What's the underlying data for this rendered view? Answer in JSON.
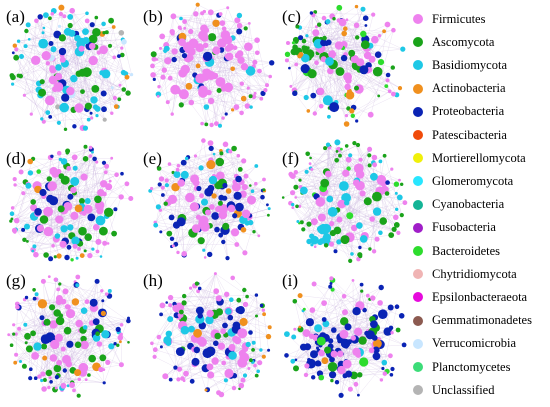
{
  "panels": [
    {
      "label": "(a)",
      "composition": {
        "firmicutes": 0.25,
        "ascomycota": 0.2,
        "basidiomycota": 0.3,
        "proteobacteria": 0.1,
        "actinobacteria": 0.08,
        "unclassified": 0.02,
        "verrucomicrobia": 0.05
      },
      "cluster": "none"
    },
    {
      "label": "(b)",
      "composition": {
        "firmicutes": 0.72,
        "proteobacteria": 0.12,
        "ascomycota": 0.06,
        "actinobacteria": 0.04,
        "basidiomycota": 0.06
      },
      "cluster": "none"
    },
    {
      "label": "(c)",
      "composition": {
        "firmicutes": 0.45,
        "ascomycota": 0.2,
        "proteobacteria": 0.12,
        "basidiomycota": 0.1,
        "actinobacteria": 0.08,
        "bacteroidetes": 0.05
      },
      "cluster": "green-top-left"
    },
    {
      "label": "(d)",
      "composition": {
        "firmicutes": 0.45,
        "proteobacteria": 0.2,
        "ascomycota": 0.17,
        "basidiomycota": 0.12,
        "actinobacteria": 0.04,
        "bacteroidetes": 0.02
      },
      "cluster": "none"
    },
    {
      "label": "(e)",
      "composition": {
        "firmicutes": 0.45,
        "proteobacteria": 0.25,
        "ascomycota": 0.12,
        "basidiomycota": 0.14,
        "actinobacteria": 0.04
      },
      "cluster": "none"
    },
    {
      "label": "(f)",
      "composition": {
        "firmicutes": 0.4,
        "ascomycota": 0.3,
        "basidiomycota": 0.2,
        "proteobacteria": 0.05,
        "bacteroidetes": 0.05
      },
      "cluster": "cyan-bottom-left"
    },
    {
      "label": "(g)",
      "composition": {
        "firmicutes": 0.4,
        "ascomycota": 0.25,
        "proteobacteria": 0.2,
        "basidiomycota": 0.1,
        "actinobacteria": 0.05
      },
      "cluster": "none"
    },
    {
      "label": "(h)",
      "composition": {
        "firmicutes": 0.45,
        "proteobacteria": 0.25,
        "ascomycota": 0.15,
        "basidiomycota": 0.12,
        "actinobacteria": 0.03
      },
      "cluster": "none"
    },
    {
      "label": "(i)",
      "composition": {
        "firmicutes": 0.35,
        "proteobacteria": 0.35,
        "ascomycota": 0.1,
        "bacteroidetes": 0.1,
        "basidiomycota": 0.08,
        "actinobacteria": 0.02
      },
      "cluster": "blue-bottom-left"
    }
  ],
  "legend": [
    {
      "key": "firmicutes",
      "label": "Firmicutes",
      "color": "#ee82ee"
    },
    {
      "key": "ascomycota",
      "label": "Ascomycota",
      "color": "#1aa31a"
    },
    {
      "key": "basidiomycota",
      "label": "Basidiomycota",
      "color": "#1ec8e6"
    },
    {
      "key": "actinobacteria",
      "label": "Actinobacteria",
      "color": "#f0901e"
    },
    {
      "key": "proteobacteria",
      "label": "Proteobacteria",
      "color": "#0a23b4"
    },
    {
      "key": "patescibacteria",
      "label": "Patescibacteria",
      "color": "#f04b0a"
    },
    {
      "key": "mortierellomycota",
      "label": "Mortierellomycota",
      "color": "#f0f00a"
    },
    {
      "key": "glomeromycota",
      "label": "Glomeromycota",
      "color": "#28e6ff"
    },
    {
      "key": "cyanobacteria",
      "label": "Cyanobacteria",
      "color": "#14b496"
    },
    {
      "key": "fusobacteria",
      "label": "Fusobacteria",
      "color": "#a01ec8"
    },
    {
      "key": "bacteroidetes",
      "label": "Bacteroidetes",
      "color": "#2ddc2d"
    },
    {
      "key": "chytridiomycota",
      "label": "Chytridiomycota",
      "color": "#f0b4b4"
    },
    {
      "key": "epsilonbacteraeota",
      "label": "Epsilonbacteraeota",
      "color": "#e60adc"
    },
    {
      "key": "gemmatimonadetes",
      "label": "Gemmatimonadetes",
      "color": "#8c5a50"
    },
    {
      "key": "verrucomicrobia",
      "label": "Verrucomicrobia",
      "color": "#c8e6ff"
    },
    {
      "key": "planctomycetes",
      "label": "Planctomycetes",
      "color": "#3cdc78"
    },
    {
      "key": "unclassified",
      "label": "Unclassified",
      "color": "#b4b4b4"
    }
  ],
  "edge_color": "#c8b4dc"
}
